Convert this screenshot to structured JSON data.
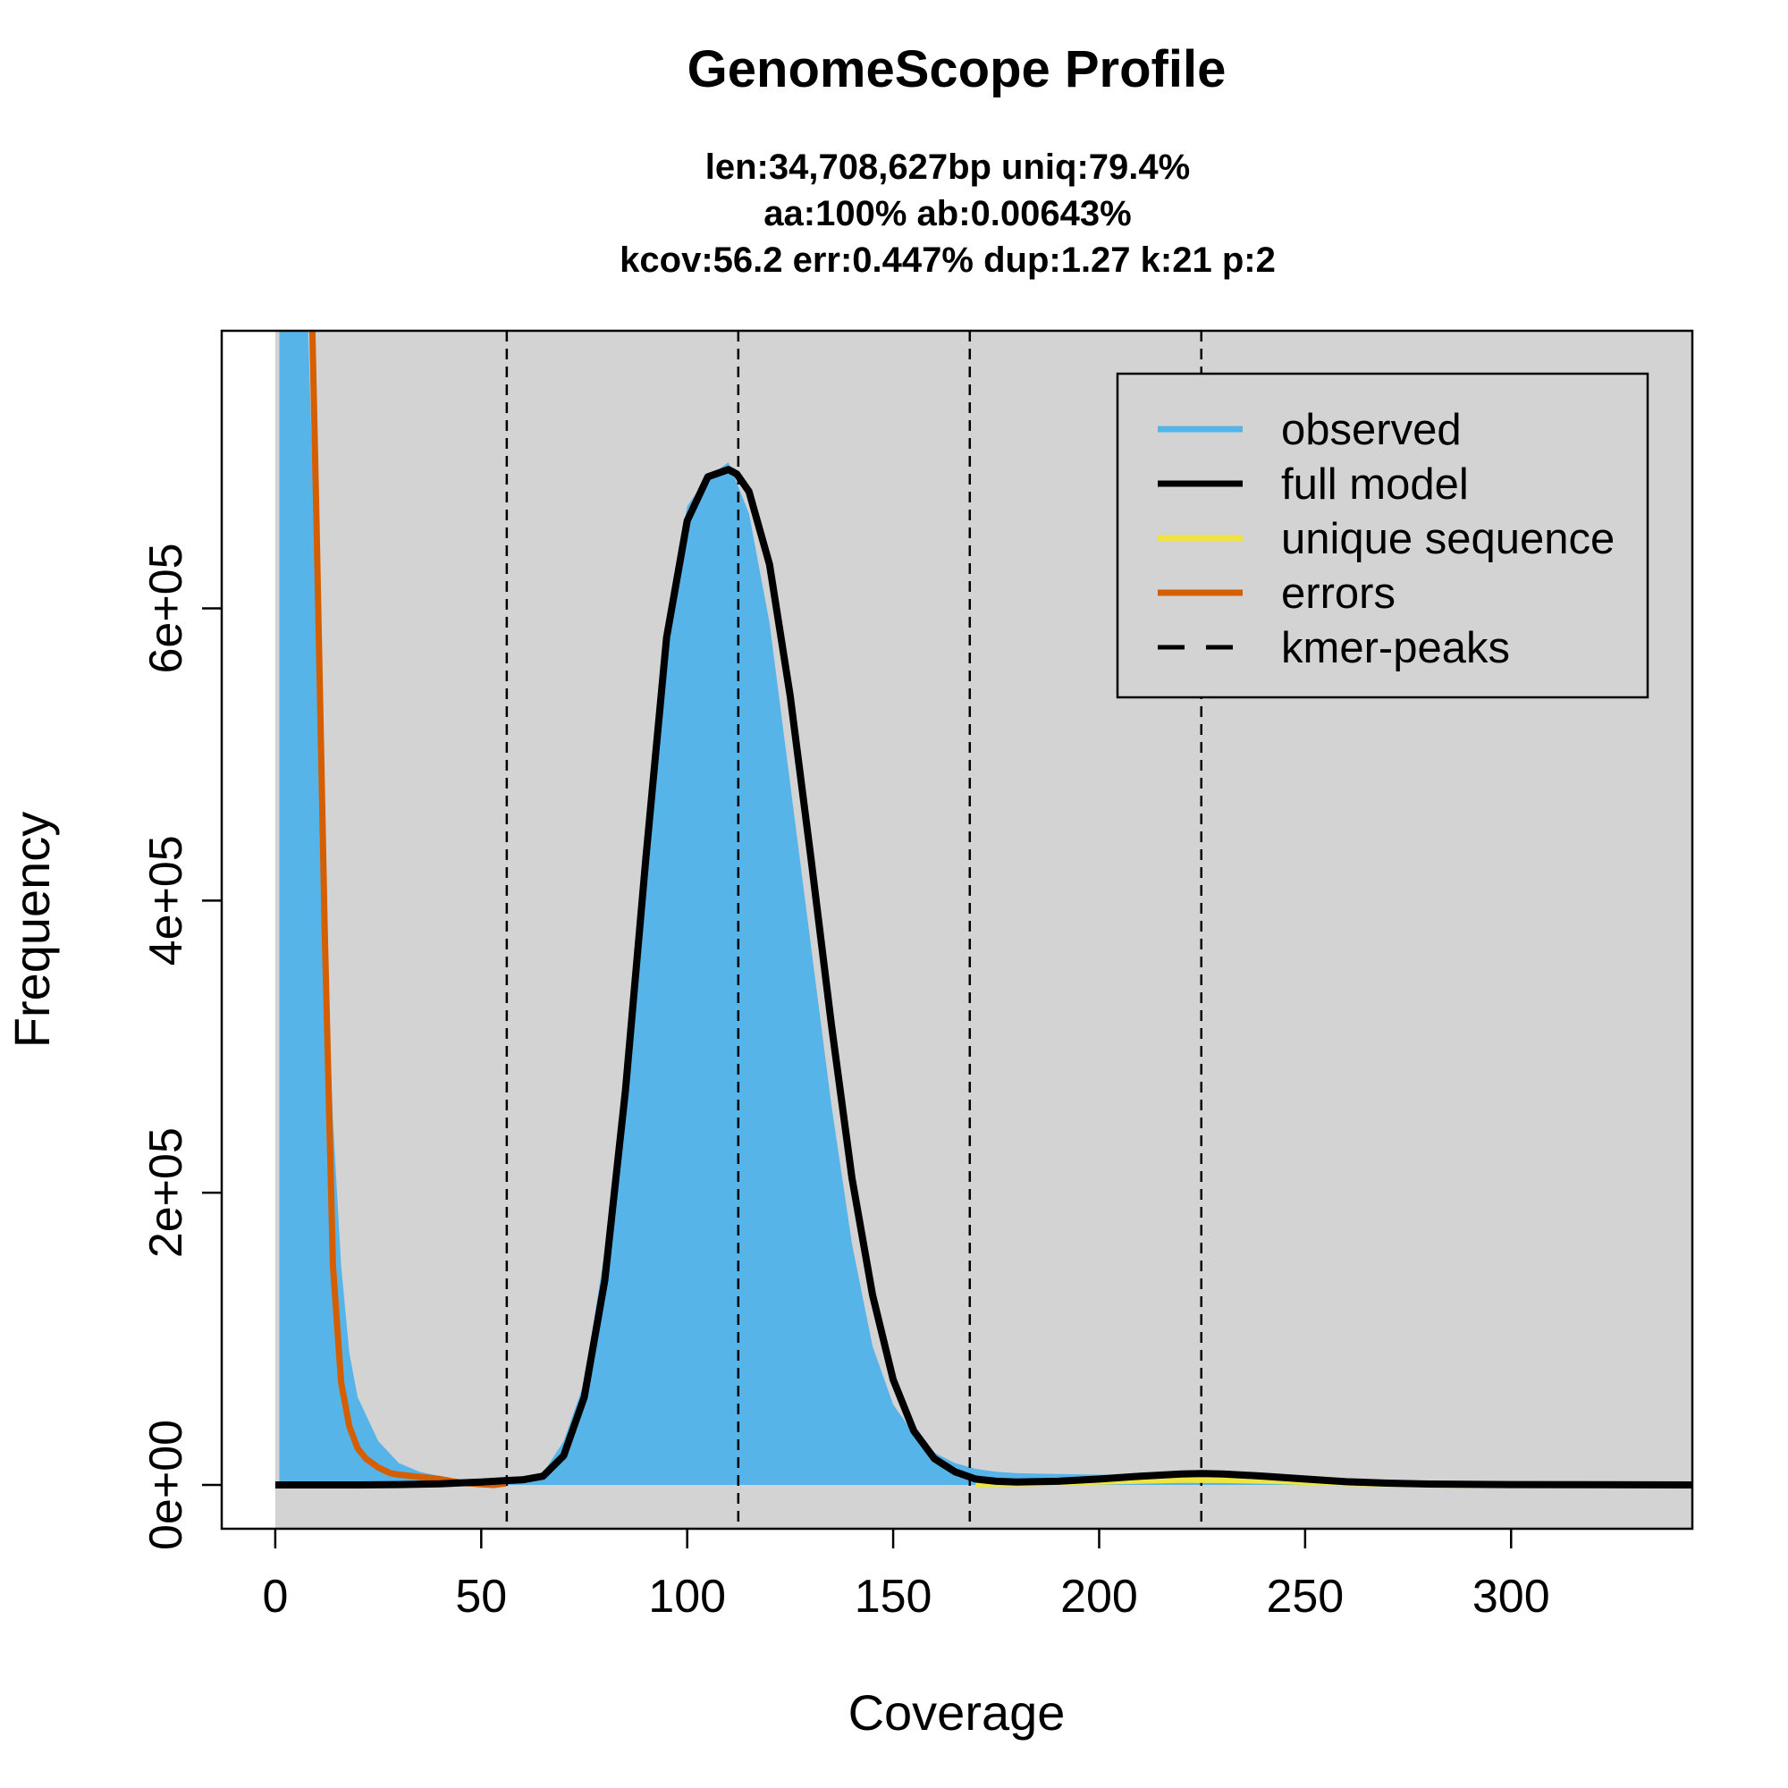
{
  "chart_data": {
    "type": "area",
    "title": "GenomeScope Profile",
    "subtitle_lines": [
      "len:34,708,627bp uniq:79.4%",
      "aa:100% ab:0.00643%",
      "kcov:56.2 err:0.447%  dup:1.27  k:21 p:2"
    ],
    "xlabel": "Coverage",
    "ylabel": "Frequency",
    "xlim": [
      -13,
      344
    ],
    "ylim": [
      -30000,
      790000
    ],
    "x_ticks": [
      {
        "value": 0,
        "label": "0"
      },
      {
        "value": 50,
        "label": "50"
      },
      {
        "value": 100,
        "label": "100"
      },
      {
        "value": 150,
        "label": "150"
      },
      {
        "value": 200,
        "label": "200"
      },
      {
        "value": 250,
        "label": "250"
      },
      {
        "value": 300,
        "label": "300"
      }
    ],
    "y_ticks": [
      {
        "value": 0,
        "label": "0e+00"
      },
      {
        "value": 200000,
        "label": "2e+05"
      },
      {
        "value": 400000,
        "label": "4e+05"
      },
      {
        "value": 600000,
        "label": "6e+05"
      }
    ],
    "kmer_peaks": [
      56.2,
      112.4,
      168.6,
      224.8
    ],
    "legend": {
      "position": "top-right",
      "entries": [
        {
          "label": "observed",
          "color": "#56B4E9",
          "style": "solid"
        },
        {
          "label": "full model",
          "color": "#000000",
          "style": "solid"
        },
        {
          "label": "unique sequence",
          "color": "#F0E442",
          "style": "solid"
        },
        {
          "label": "errors",
          "color": "#D55E00",
          "style": "solid"
        },
        {
          "label": "kmer-peaks",
          "color": "#000000",
          "style": "dashed"
        }
      ]
    },
    "colors": {
      "panel_background": "#D3D3D3",
      "observed": "#56B4E9",
      "full_model": "#000000",
      "unique_sequence": "#F0E442",
      "errors": "#D55E00"
    },
    "series": [
      {
        "name": "observed",
        "x": [
          1,
          3,
          5,
          8,
          10,
          12,
          14,
          16,
          18,
          20,
          25,
          30,
          35,
          40,
          45,
          50,
          55,
          60,
          65,
          70,
          75,
          80,
          85,
          90,
          95,
          100,
          105,
          110,
          115,
          120,
          125,
          130,
          135,
          140,
          145,
          150,
          155,
          160,
          165,
          170,
          175,
          180,
          190,
          200,
          210,
          220,
          230,
          240,
          250,
          260,
          270,
          280,
          290,
          300,
          320,
          344
        ],
        "y": [
          790000,
          790000,
          790000,
          790000,
          600000,
          400000,
          250000,
          150000,
          90000,
          60000,
          30000,
          15000,
          9000,
          6000,
          3000,
          2000,
          1500,
          2000,
          8000,
          30000,
          70000,
          160000,
          290000,
          450000,
          590000,
          670000,
          690000,
          700000,
          665000,
          590000,
          480000,
          370000,
          260000,
          165000,
          95000,
          55000,
          35000,
          22000,
          15000,
          11000,
          9000,
          8000,
          7500,
          7000,
          6500,
          6000,
          5000,
          4000,
          3000,
          2000,
          1500,
          1000,
          700,
          500,
          300,
          200
        ]
      },
      {
        "name": "full model",
        "x": [
          0,
          10,
          20,
          30,
          40,
          50,
          56,
          60,
          65,
          70,
          75,
          80,
          85,
          90,
          95,
          100,
          105,
          110,
          112,
          115,
          120,
          125,
          130,
          135,
          140,
          145,
          150,
          155,
          160,
          165,
          170,
          175,
          180,
          190,
          200,
          210,
          220,
          225,
          230,
          240,
          250,
          260,
          270,
          280,
          300,
          320,
          344
        ],
        "y": [
          0,
          0,
          0,
          200,
          800,
          2000,
          3000,
          3500,
          6000,
          20000,
          60000,
          140000,
          270000,
          430000,
          580000,
          660000,
          690000,
          695000,
          692000,
          680000,
          630000,
          540000,
          430000,
          315000,
          210000,
          130000,
          72000,
          37000,
          18000,
          9000,
          4000,
          2500,
          2000,
          2500,
          4000,
          6000,
          7500,
          7800,
          7500,
          6000,
          4000,
          2200,
          1200,
          600,
          200,
          100,
          0
        ]
      },
      {
        "name": "unique sequence",
        "x": [
          170,
          180,
          190,
          200,
          210,
          220,
          230,
          240,
          250,
          260,
          270,
          280,
          290
        ],
        "y": [
          500,
          1000,
          1600,
          2300,
          3000,
          3500,
          3400,
          2900,
          2100,
          1300,
          700,
          300,
          100
        ]
      },
      {
        "name": "errors",
        "x": [
          9,
          10,
          12,
          14,
          16,
          18,
          20,
          22,
          25,
          28,
          30,
          35,
          40,
          45,
          50,
          53,
          56
        ],
        "y": [
          790000,
          660000,
          380000,
          150000,
          70000,
          40000,
          25000,
          18000,
          12000,
          8000,
          7000,
          5500,
          4000,
          1500,
          500,
          0,
          1000
        ]
      }
    ]
  }
}
